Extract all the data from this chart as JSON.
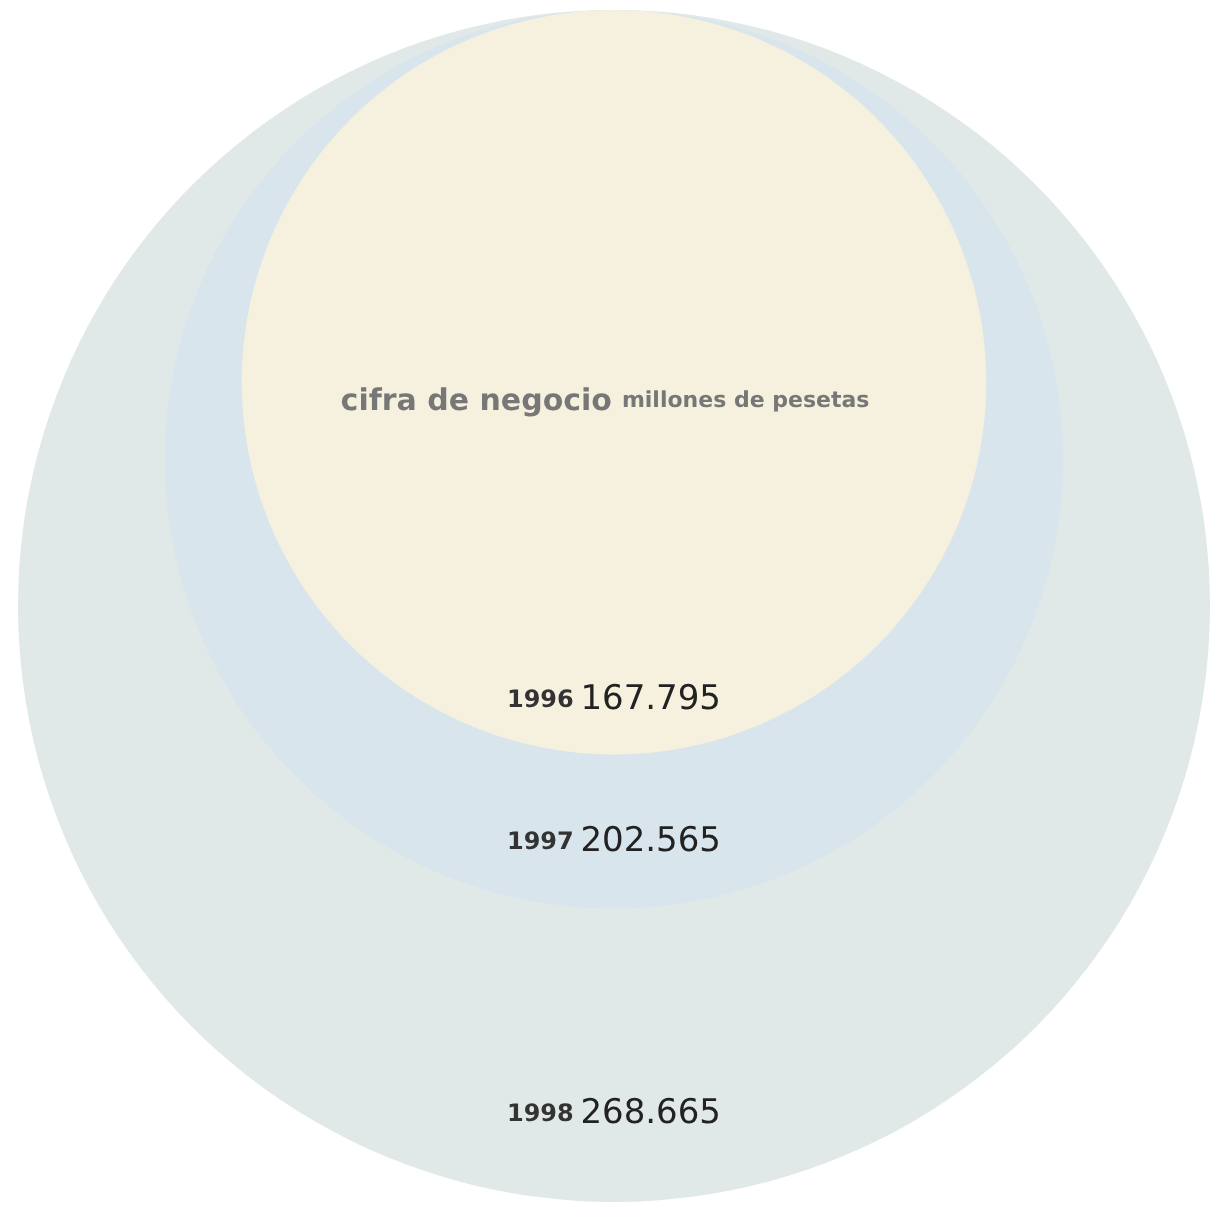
{
  "chart_data": {
    "type": "other",
    "title": "cifra de negocio",
    "subtitle": "millones de pesetas",
    "categories": [
      "1996",
      "1997",
      "1998"
    ],
    "values": [
      167795,
      202565,
      268665
    ],
    "value_labels": [
      "167.795",
      "202.565",
      "268.665"
    ],
    "colors": [
      "#f5f1de",
      "#d9e5ec",
      "#e1e9e8"
    ]
  }
}
